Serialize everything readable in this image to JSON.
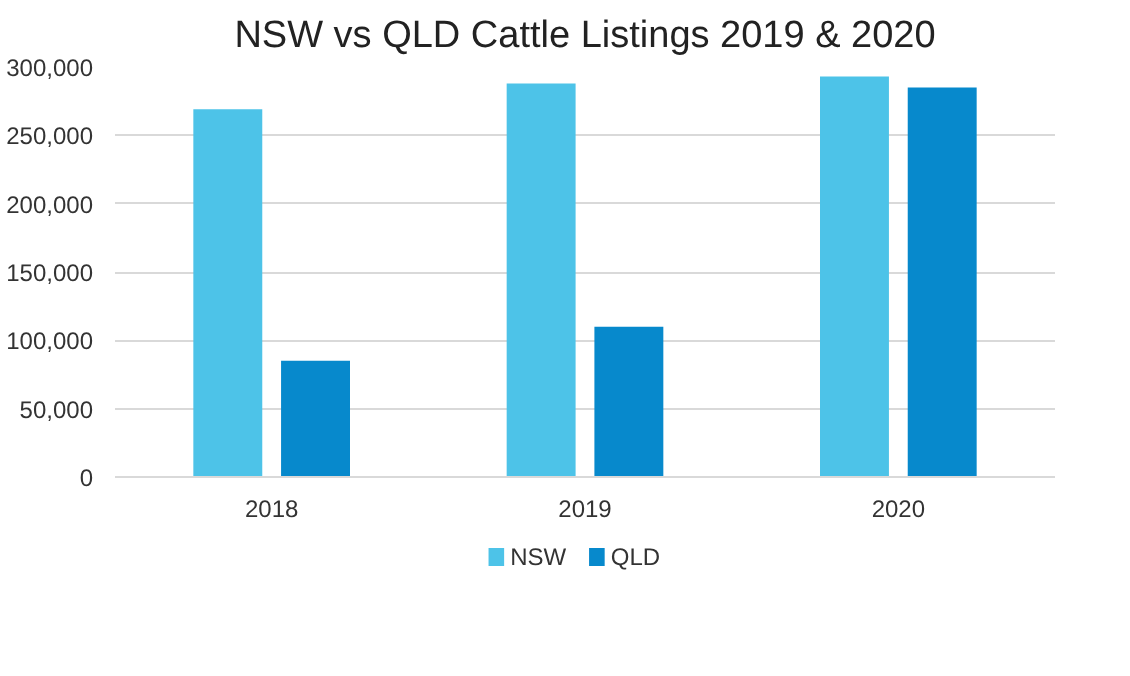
{
  "chart_data": {
    "type": "bar",
    "title": "NSW vs QLD Cattle Listings 2019 & 2020",
    "categories": [
      "2018",
      "2019",
      "2020"
    ],
    "series": [
      {
        "name": "NSW",
        "color": "#4dc3e8",
        "values": [
          269000,
          288000,
          293000
        ]
      },
      {
        "name": "QLD",
        "color": "#0789cc",
        "values": [
          85000,
          110000,
          285000
        ]
      }
    ],
    "ylim": [
      0,
      300000
    ],
    "yticks": [
      {
        "value": 0,
        "label": "0"
      },
      {
        "value": 50000,
        "label": "50,000"
      },
      {
        "value": 100000,
        "label": "100,000"
      },
      {
        "value": 150000,
        "label": "150,000"
      },
      {
        "value": 200000,
        "label": "200,000"
      },
      {
        "value": 250000,
        "label": "250,000"
      },
      {
        "value": 300000,
        "label": "300,000"
      }
    ],
    "grid": "y",
    "legend": "bottom"
  }
}
